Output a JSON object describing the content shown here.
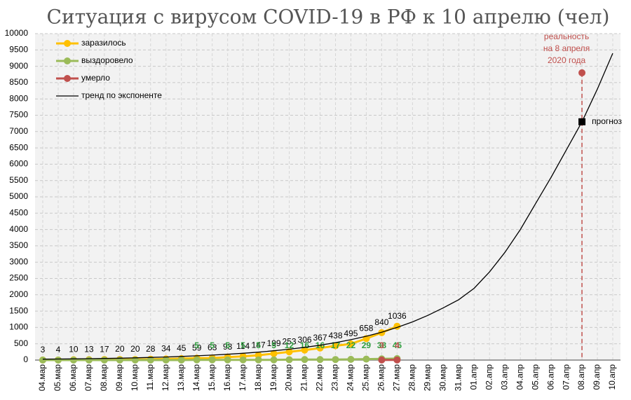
{
  "chart_data": {
    "type": "line",
    "title": "Ситуация с вирусом COVID-19 в РФ к 10 апрелю (чел)",
    "categories": [
      "04.мар",
      "05.мар",
      "06.мар",
      "07.мар",
      "08.мар",
      "09.мар",
      "10.мар",
      "11.мар",
      "12.мар",
      "13.мар",
      "14.мар",
      "15.мар",
      "16.мар",
      "17.мар",
      "18.мар",
      "19.мар",
      "20.мар",
      "21.мар",
      "22.мар",
      "23.мар",
      "24.мар",
      "25.мар",
      "26.мар",
      "27.мар",
      "28.мар",
      "29.мар",
      "30.мар",
      "31.мар",
      "01.апр",
      "02.апр",
      "03.апр",
      "04.апр",
      "05.апр",
      "06.апр",
      "07.апр",
      "08.апр",
      "09.апр",
      "10.апр"
    ],
    "series": [
      {
        "name": "заразилось",
        "color": "#ffc000",
        "label_color": "#000000",
        "values": [
          3,
          4,
          10,
          13,
          17,
          20,
          20,
          28,
          34,
          45,
          59,
          63,
          93,
          114,
          147,
          199,
          253,
          306,
          367,
          438,
          495,
          658,
          840,
          1036,
          null,
          null,
          null,
          null,
          null,
          null,
          null,
          null,
          null,
          null,
          null,
          null,
          null,
          null
        ]
      },
      {
        "name": "выздоровело",
        "color": "#9bbb59",
        "label_color": "#2e9e3e",
        "values": [
          0,
          0,
          0,
          0,
          0,
          0,
          0,
          0,
          0,
          0,
          5,
          5,
          5,
          5,
          5,
          5,
          12,
          16,
          16,
          17,
          22,
          29,
          38,
          45,
          null,
          null,
          null,
          null,
          null,
          null,
          null,
          null,
          null,
          null,
          null,
          null,
          null,
          null
        ]
      },
      {
        "name": "умерло",
        "color": "#c0504d",
        "label_color": "#c0504d",
        "values": [
          null,
          null,
          null,
          null,
          null,
          null,
          null,
          null,
          null,
          null,
          null,
          null,
          null,
          null,
          null,
          null,
          null,
          null,
          null,
          null,
          null,
          null,
          3,
          4,
          null,
          null,
          null,
          null,
          null,
          null,
          null,
          null,
          null,
          null,
          null,
          null,
          null,
          null
        ]
      },
      {
        "name": "тренд по экспоненте",
        "color": "#000000",
        "trend": true,
        "values": [
          27,
          32,
          37,
          43,
          50,
          59,
          69,
          81,
          95,
          111,
          130,
          152,
          178,
          208,
          243,
          285,
          333,
          390,
          456,
          534,
          624,
          730,
          855,
          1000,
          1170,
          1370,
          1600,
          1850,
          2200,
          2700,
          3300,
          4000,
          4800,
          5600,
          6450,
          7300,
          8300,
          9400
        ]
      }
    ],
    "ylim": [
      0,
      10000
    ],
    "yticks": [
      0,
      500,
      1000,
      1500,
      2000,
      2500,
      3000,
      3500,
      4000,
      4500,
      5000,
      5500,
      6000,
      6500,
      7000,
      7500,
      8000,
      8500,
      9000,
      9500,
      10000
    ],
    "grid": true,
    "legend": "top-left",
    "reality": {
      "category": "08.апр",
      "value": 8800,
      "color": "#c0504d",
      "text": [
        "реальность",
        "на 8 апреля",
        "2020 года"
      ]
    },
    "forecast": {
      "category": "08.апр",
      "value": 7300,
      "text": "прогноз"
    }
  }
}
